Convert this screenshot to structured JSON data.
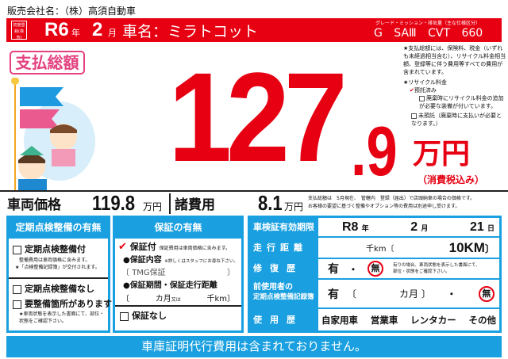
{
  "dealer": "販売会社名：（株）高須自動車",
  "band": {
    "badge": "初度登録(検査)",
    "year": "R6",
    "year_label": "年",
    "month": "2",
    "month_label": "月",
    "car_name": "車名：ミラトコット",
    "grade_label": "グレード・ミッション・排気量（主な仕様区分）",
    "grade": "G SAⅢ CVT 660"
  },
  "total": {
    "label": "支払総額",
    "integer": "127",
    "decimal": ".9",
    "unit": "万円",
    "tax": "（消費税込み）"
  },
  "notes": {
    "n1": "★支払総額には、保険料、税金（いずれも未経過相当含む）、リサイクル料金相当額、登録等に伴う費用等すべての費用が含まれています。",
    "recycle": "★リサイクル料金",
    "deposited": "預託済み",
    "d_sub": "廃棄時にリサイクル料金の追加が必要な装備が付いています。",
    "not_dep": "未預託（廃棄時に支払いが必要となります。）"
  },
  "prices": {
    "vehicle_label": "車両価格",
    "vehicle": "119.8",
    "fees_label": "諸費用",
    "fees": "8.1",
    "unit": "万円",
    "note1": "支払総額は　5月現在、　管轄内　登録（届出）で店頭納車の場合の価格です。",
    "note2": "お客様の要望に基づく整備やオプション等の費用は別途申し受けます。"
  },
  "inspection": {
    "title": "定期点検整備の有無",
    "with": "定期点検整備付",
    "with_n1": "整備費用は車両価格に含みます。",
    "with_n2": "★「点検整備記録簿」が交付されます。",
    "without": "定期点検整備なし",
    "needs": "要整備箇所があります",
    "needs_n": "★車両状態を表示した書面にて、部位・状態をご確認下さい。"
  },
  "warranty": {
    "title": "保証の有無",
    "with": "保証付",
    "with_n": "保証費用は車両価格に含みます。",
    "content_label": "●保証内容",
    "content_n": "※詳しくはスタッフにお尋ね下さい。",
    "content": "TMG保証",
    "period_label": "●保証期間・保証走行距離",
    "months": "カ月",
    "or": "又は",
    "km": "千km",
    "without": "保証なし"
  },
  "table": {
    "shaken_label": "車検証有効期限",
    "shaken_year": "R8",
    "y": "年",
    "shaken_month": "2",
    "m": "月",
    "shaken_day": "21",
    "d": "日",
    "mileage_label": "走行距離",
    "mileage_unit": "千km",
    "mileage": "10KM",
    "repair_label": "修復歴",
    "yes": "有",
    "dot": "・",
    "no": "無",
    "repair_note": "有りの場合、車両状態を表示した書面にて、部位・状態をご確認下さい。",
    "record_label1": "前使用者の",
    "record_label2": "定期点検整備記録簿",
    "record_months": "カ月",
    "usage_label": "使用歴",
    "usage": [
      "自家用車",
      "営業車",
      "レンタカー",
      "その他"
    ]
  },
  "footer": "車庫証明代行費用は含まれておりません。",
  "colors": {
    "red": "#e60012",
    "blue": "#1aa0e0",
    "pink": "#e4417f"
  }
}
